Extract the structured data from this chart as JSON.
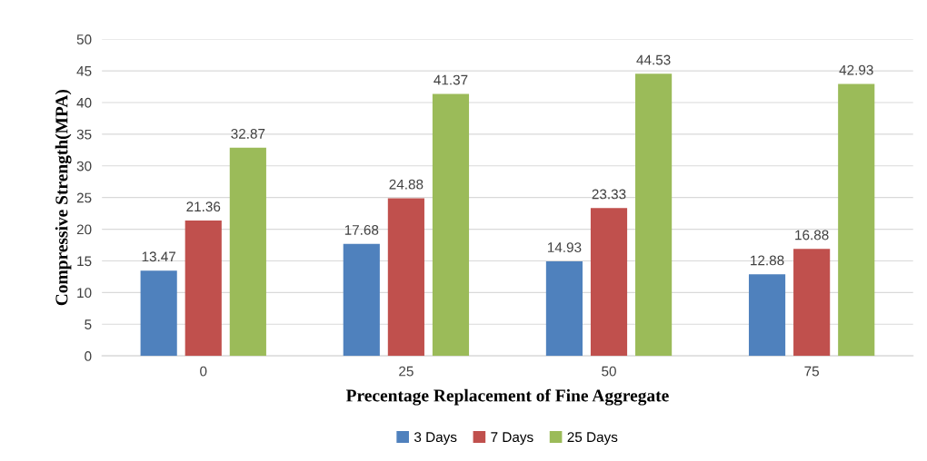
{
  "chart_data": {
    "type": "bar",
    "xlabel": "Precentage Replacement of Fine Aggregate",
    "ylabel": "Compressive Strength(MPA)",
    "categories": [
      "0",
      "25",
      "50",
      "75"
    ],
    "series": [
      {
        "name": "3 Days",
        "color": "#4f81bd",
        "values": [
          13.47,
          17.68,
          14.93,
          12.88
        ]
      },
      {
        "name": "7 Days",
        "color": "#c0504d",
        "values": [
          21.36,
          24.88,
          23.33,
          16.88
        ]
      },
      {
        "name": "25 Days",
        "color": "#9bbb59",
        "values": [
          32.87,
          41.37,
          44.53,
          42.93
        ]
      }
    ],
    "ylim": [
      0,
      50
    ],
    "yticks": [
      0,
      5,
      10,
      15,
      20,
      25,
      30,
      35,
      40,
      45,
      50
    ],
    "grid": "y",
    "legend": "bottom",
    "data_labels": true
  }
}
